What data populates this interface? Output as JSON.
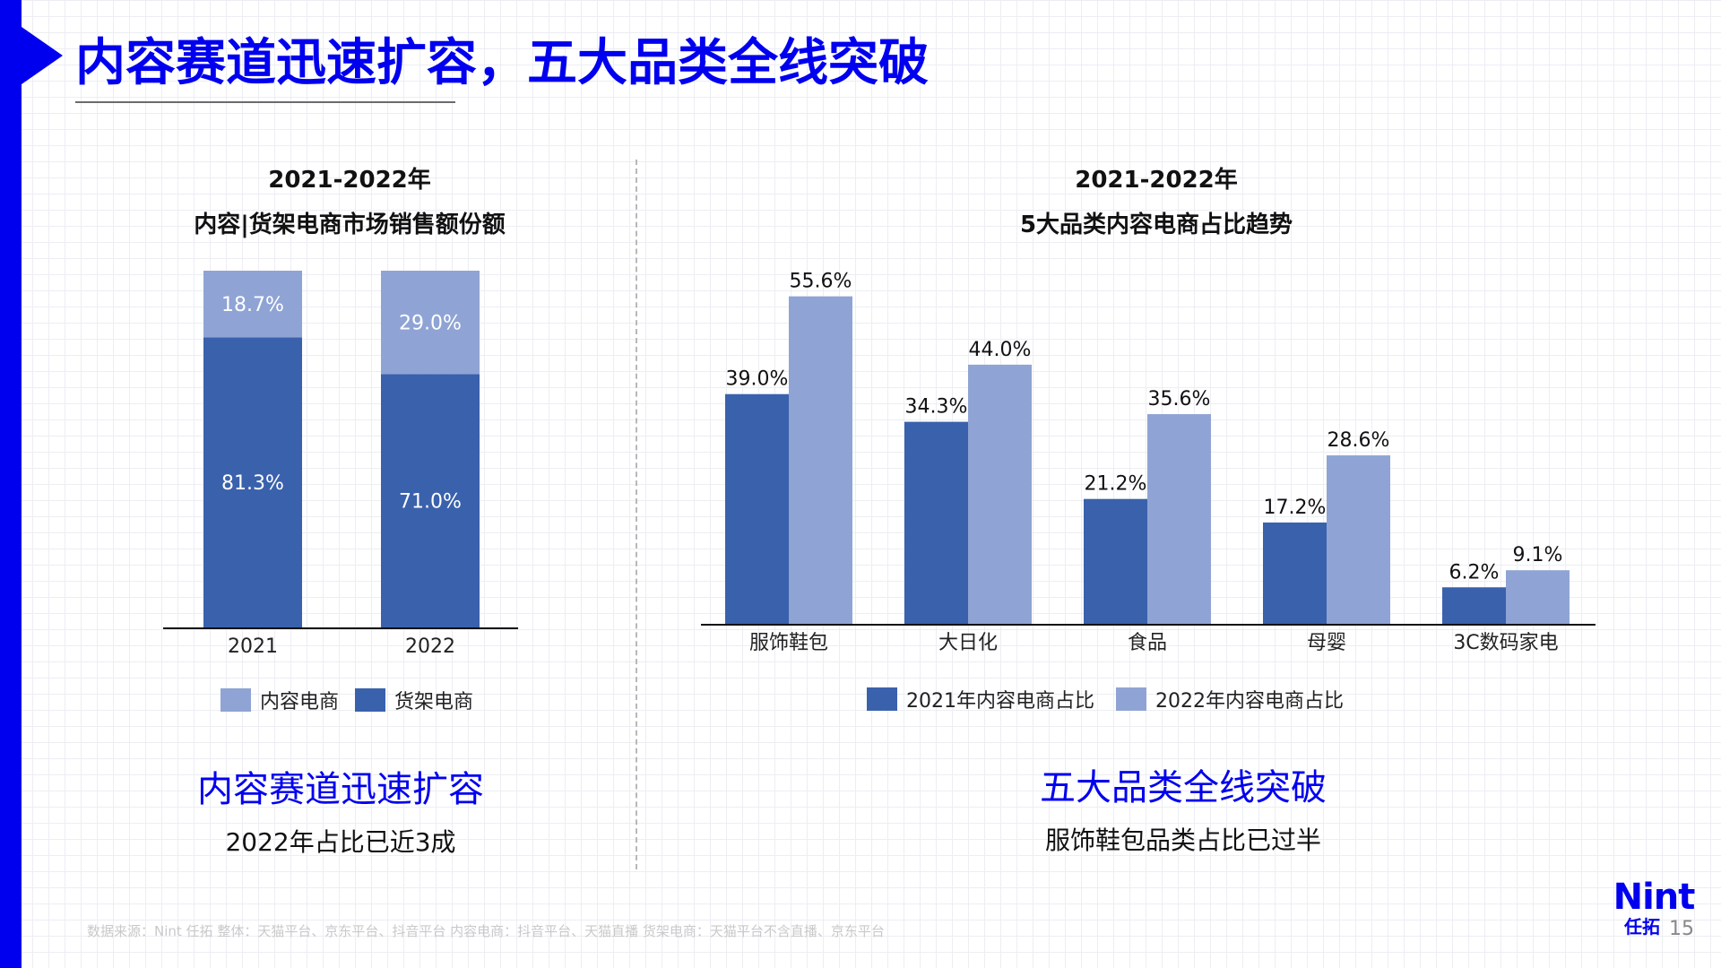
{
  "page": {
    "title": "内容赛道迅速扩容，五大品类全线突破",
    "footnote": "数据来源：Nint 任拓    整体：天猫平台、京东平台、抖音平台    内容电商：抖音平台、天猫直播    货架电商：天猫平台不含直播、京东平台",
    "logo_line1": "Nint",
    "logo_line2": "任拓",
    "page_number": "15"
  },
  "left_panel": {
    "headline": "内容赛道迅速扩容",
    "subline": "2022年占比已近3成"
  },
  "right_panel": {
    "headline": "五大品类全线突破",
    "subline": "服饰鞋包品类占比已过半"
  },
  "colors": {
    "accent": "#0000ee",
    "dark_series": "#3a61ac",
    "light_series": "#8fa4d4"
  },
  "chart_data": [
    {
      "type": "bar",
      "stacked": true,
      "title_line1": "2021-2022年",
      "title_line2": "内容|货架电商市场销售额份额",
      "categories": [
        "2021",
        "2022"
      ],
      "series": [
        {
          "name": "内容电商",
          "values": [
            18.7,
            29.0
          ],
          "labels": [
            "18.7%",
            "29.0%"
          ]
        },
        {
          "name": "货架电商",
          "values": [
            81.3,
            71.0
          ],
          "labels": [
            "81.3%",
            "71.0%"
          ]
        }
      ],
      "ylim": [
        0,
        100
      ],
      "legend": "bottom",
      "grid": false
    },
    {
      "type": "bar",
      "stacked": false,
      "title_line1": "2021-2022年",
      "title_line2": "5大品类内容电商占比趋势",
      "categories": [
        "服饰鞋包",
        "大日化",
        "食品",
        "母婴",
        "3C数码家电"
      ],
      "series": [
        {
          "name": "2021年内容电商占比",
          "values": [
            39.0,
            34.3,
            21.2,
            17.2,
            6.2
          ],
          "labels": [
            "39.0%",
            "34.3%",
            "21.2%",
            "17.2%",
            "6.2%"
          ]
        },
        {
          "name": "2022年内容电商占比",
          "values": [
            55.6,
            44.0,
            35.6,
            28.6,
            9.1
          ],
          "labels": [
            "55.6%",
            "44.0%",
            "35.6%",
            "28.6%",
            "9.1%"
          ]
        }
      ],
      "ylim": [
        0,
        56
      ],
      "legend": "bottom",
      "grid": false
    }
  ]
}
